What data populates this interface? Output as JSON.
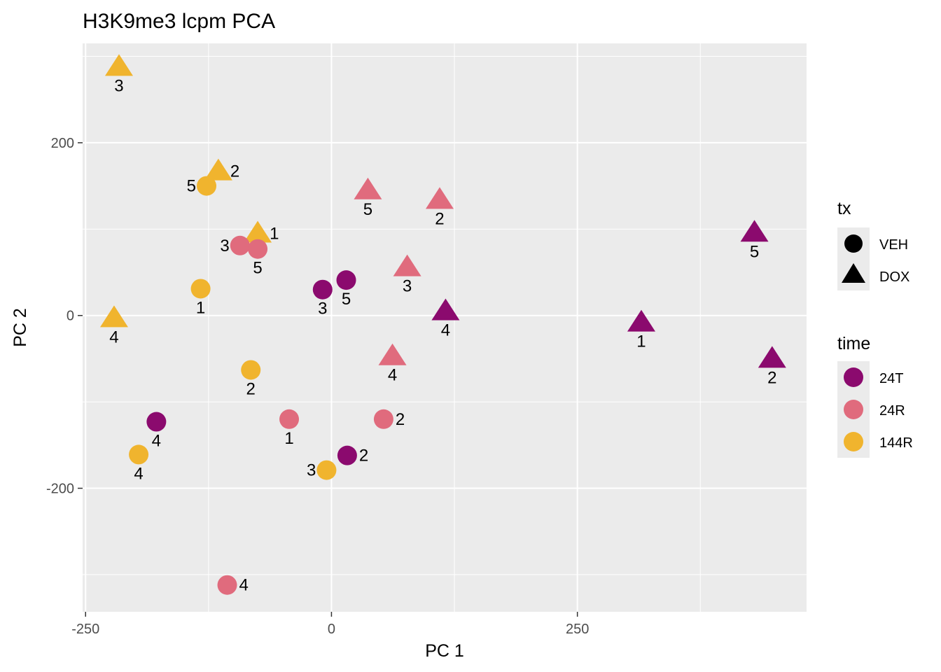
{
  "chart_data": {
    "type": "scatter",
    "title": "H3K9me3 lcpm PCA",
    "xlabel": "PC 1",
    "ylabel": "PC 2",
    "xlim": [
      -253,
      483
    ],
    "ylim": [
      -343,
      315
    ],
    "x_ticks": [
      -250,
      0,
      250
    ],
    "x_tick_labels": [
      "-250",
      "0",
      "250"
    ],
    "y_ticks": [
      -200,
      0,
      200
    ],
    "y_tick_labels": [
      "-200",
      "0",
      "200"
    ],
    "grid": true,
    "legend_position": "right",
    "legends": {
      "tx": {
        "title": "tx",
        "items": [
          {
            "label": "VEH",
            "shape": "circle"
          },
          {
            "label": "DOX",
            "shape": "triangle"
          }
        ]
      },
      "time": {
        "title": "time",
        "items": [
          {
            "label": "24T",
            "color": "#8B0A6E"
          },
          {
            "label": "24R",
            "color": "#E06B7D"
          },
          {
            "label": "144R",
            "color": "#F0B42E"
          }
        ]
      }
    },
    "points": [
      {
        "x": -216,
        "y": 288,
        "tx": "DOX",
        "time": "144R",
        "label": "3",
        "label_pos": "below"
      },
      {
        "x": -115,
        "y": 167,
        "tx": "DOX",
        "time": "144R",
        "label": "2",
        "label_pos": "right"
      },
      {
        "x": -127,
        "y": 150,
        "tx": "VEH",
        "time": "144R",
        "label": "5",
        "label_pos": "left"
      },
      {
        "x": -75,
        "y": 95,
        "tx": "DOX",
        "time": "144R",
        "label": "1",
        "label_pos": "right"
      },
      {
        "x": -133,
        "y": 31,
        "tx": "VEH",
        "time": "144R",
        "label": "1",
        "label_pos": "below"
      },
      {
        "x": -221,
        "y": -3,
        "tx": "DOX",
        "time": "144R",
        "label": "4",
        "label_pos": "below"
      },
      {
        "x": -82,
        "y": -63,
        "tx": "VEH",
        "time": "144R",
        "label": "2",
        "label_pos": "below"
      },
      {
        "x": -196,
        "y": -161,
        "tx": "VEH",
        "time": "144R",
        "label": "4",
        "label_pos": "below"
      },
      {
        "x": -5,
        "y": -179,
        "tx": "VEH",
        "time": "144R",
        "label": "3",
        "label_pos": "left"
      },
      {
        "x": 37,
        "y": 145,
        "tx": "DOX",
        "time": "24R",
        "label": "5",
        "label_pos": "below"
      },
      {
        "x": 110,
        "y": 134,
        "tx": "DOX",
        "time": "24R",
        "label": "2",
        "label_pos": "below"
      },
      {
        "x": -93,
        "y": 81,
        "tx": "VEH",
        "time": "24R",
        "label": "3",
        "label_pos": "left"
      },
      {
        "x": -75,
        "y": 77,
        "tx": "VEH",
        "time": "24R",
        "label": "5",
        "label_pos": "below"
      },
      {
        "x": 77,
        "y": 56,
        "tx": "DOX",
        "time": "24R",
        "label": "3",
        "label_pos": "below"
      },
      {
        "x": 62,
        "y": -47,
        "tx": "DOX",
        "time": "24R",
        "label": "4",
        "label_pos": "below"
      },
      {
        "x": -43,
        "y": -120,
        "tx": "VEH",
        "time": "24R",
        "label": "1",
        "label_pos": "below"
      },
      {
        "x": 53,
        "y": -120,
        "tx": "VEH",
        "time": "24R",
        "label": "2",
        "label_pos": "right"
      },
      {
        "x": -106,
        "y": -312,
        "tx": "VEH",
        "time": "24R",
        "label": "4",
        "label_pos": "right"
      },
      {
        "x": -9,
        "y": 30,
        "tx": "VEH",
        "time": "24T",
        "label": "3",
        "label_pos": "below"
      },
      {
        "x": 15,
        "y": 41,
        "tx": "VEH",
        "time": "24T",
        "label": "5",
        "label_pos": "below"
      },
      {
        "x": 116,
        "y": 5,
        "tx": "DOX",
        "time": "24T",
        "label": "4",
        "label_pos": "below"
      },
      {
        "x": 315,
        "y": -8,
        "tx": "DOX",
        "time": "24T",
        "label": "1",
        "label_pos": "below"
      },
      {
        "x": 430,
        "y": 96,
        "tx": "DOX",
        "time": "24T",
        "label": "5",
        "label_pos": "below"
      },
      {
        "x": 448,
        "y": -50,
        "tx": "DOX",
        "time": "24T",
        "label": "2",
        "label_pos": "below"
      },
      {
        "x": -178,
        "y": -123,
        "tx": "VEH",
        "time": "24T",
        "label": "4",
        "label_pos": "below"
      },
      {
        "x": 16,
        "y": -162,
        "tx": "VEH",
        "time": "24T",
        "label": "2",
        "label_pos": "right"
      }
    ]
  }
}
